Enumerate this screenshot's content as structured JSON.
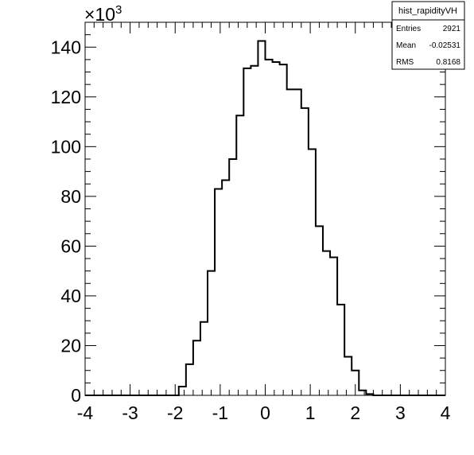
{
  "chart_data": {
    "type": "bar",
    "histogram": true,
    "bin_edges_range": [
      -4,
      4
    ],
    "bin_width": 0.16,
    "values": [
      0,
      0,
      0,
      0,
      0,
      0,
      0,
      0,
      0,
      0,
      0,
      0,
      0,
      3.5,
      12.5,
      22,
      29.5,
      50,
      83,
      86.5,
      95,
      112.5,
      131.5,
      132.5,
      142.5,
      135,
      134,
      133,
      123,
      123,
      115.5,
      99,
      68,
      58,
      55.5,
      36.5,
      15.5,
      10,
      2,
      0.5,
      0,
      0,
      0,
      0,
      0,
      0,
      0,
      0,
      0,
      0
    ],
    "xlim": [
      -4,
      4
    ],
    "ylim": [
      0,
      150
    ],
    "x_ticks": [
      "-4",
      "-3",
      "-2",
      "-1",
      "0",
      "1",
      "2",
      "3",
      "4"
    ],
    "y_ticks": [
      "0",
      "20",
      "40",
      "60",
      "80",
      "100",
      "120",
      "140"
    ],
    "y_multiplier": "×10",
    "y_multiplier_exp": "3",
    "stats_box": {
      "title": "hist_rapidityVH",
      "rows": [
        {
          "label": "Entries",
          "value": "2921"
        },
        {
          "label": "Mean",
          "value": "-0.02531"
        },
        {
          "label": "RMS",
          "value": "0.8168"
        }
      ]
    }
  }
}
